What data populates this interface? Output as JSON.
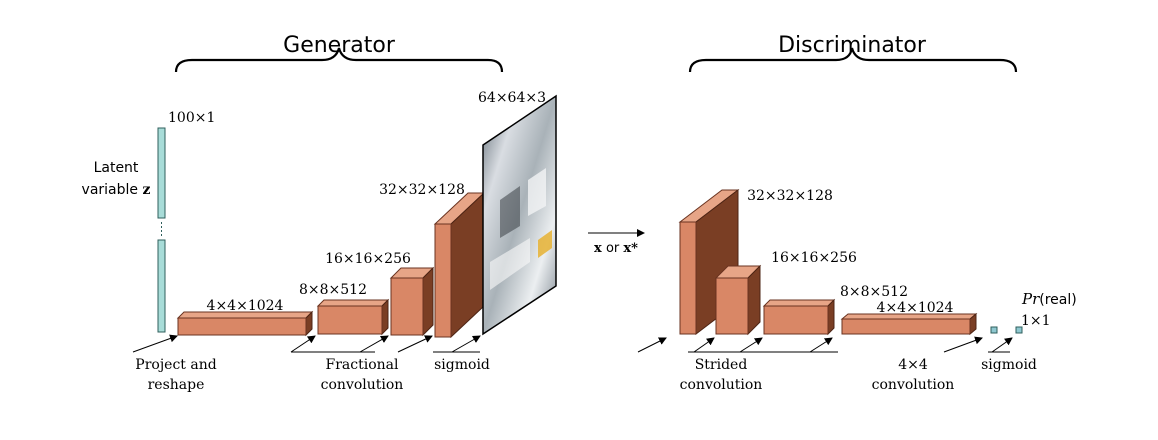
{
  "generator": {
    "title": "Generator",
    "latent_size": "100×1",
    "latent_label_line1": "Latent",
    "latent_label_line2": "variable ",
    "latent_label_var": "z",
    "output_size": "64×64×3",
    "layers": [
      "4×4×1024",
      "8×8×512",
      "16×16×256",
      "32×32×128"
    ],
    "ops": {
      "project_line1": "Project and",
      "project_line2": "reshape",
      "fractional_line1": "Fractional",
      "fractional_line2": "convolution",
      "sigmoid": "sigmoid"
    }
  },
  "link": {
    "x": "x",
    "or": " or ",
    "xstar": "x*"
  },
  "discriminator": {
    "title": "Discriminator",
    "layers": [
      "32×32×128",
      "16×16×256",
      "8×8×512",
      "4×4×1024"
    ],
    "output_prob_func": "Pr",
    "output_prob_arg": "(real)",
    "output_size": "1×1",
    "ops": {
      "strided_line1": "Strided",
      "strided_line2": "convolution",
      "conv4_line1": "4×4",
      "conv4_line2": "convolution",
      "sigmoid": "sigmoid"
    }
  },
  "colors": {
    "block_front": "#d98766",
    "block_top": "#e7a587",
    "block_side": "#7a3e24",
    "latent_bar": "#a8dcd8",
    "output_square": "#8ec7cf"
  }
}
